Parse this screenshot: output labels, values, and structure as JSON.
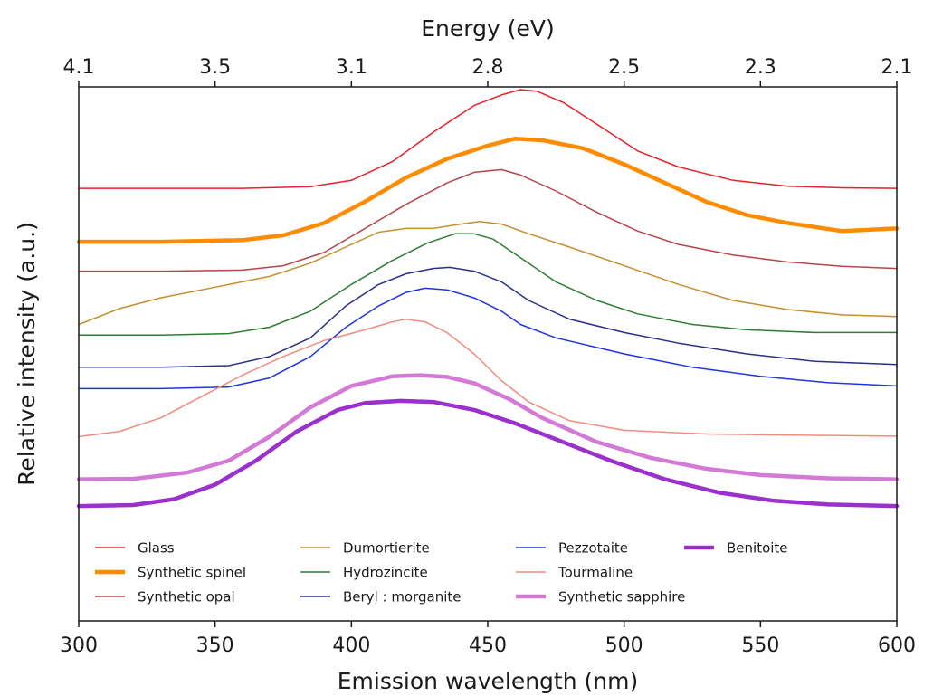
{
  "chart_data": {
    "type": "line",
    "xlabel": "Emission wavelength (nm)",
    "ylabel": "Relative intensity (a.u.)",
    "top_xlabel": "Energy (eV)",
    "xlim": [
      300,
      600
    ],
    "ylim": [
      0,
      100
    ],
    "x_ticks": [
      300,
      350,
      400,
      450,
      500,
      550,
      600
    ],
    "x_tick_labels": [
      "300",
      "350",
      "400",
      "450",
      "500",
      "550",
      "600"
    ],
    "top_ticks": [
      {
        "label": "4.1",
        "wavelength": 300
      },
      {
        "label": "3.5",
        "wavelength": 350
      },
      {
        "label": "3.1",
        "wavelength": 400
      },
      {
        "label": "2.8",
        "wavelength": 450
      },
      {
        "label": "2.5",
        "wavelength": 500
      },
      {
        "label": "2.3",
        "wavelength": 550
      },
      {
        "label": "2.1",
        "wavelength": 600
      }
    ],
    "y_ticks_visible": false,
    "grid": false,
    "legend_position": "bottom",
    "legend_columns": 4,
    "series": [
      {
        "name": "Glass",
        "color": "#e8202a",
        "width": 1.5,
        "points": [
          [
            300,
            81
          ],
          [
            330,
            81
          ],
          [
            360,
            81
          ],
          [
            385,
            81.3
          ],
          [
            400,
            82.5
          ],
          [
            415,
            86
          ],
          [
            430,
            91.5
          ],
          [
            445,
            96.5
          ],
          [
            455,
            98.5
          ],
          [
            462,
            99.5
          ],
          [
            468,
            99.2
          ],
          [
            478,
            97
          ],
          [
            490,
            93
          ],
          [
            505,
            88
          ],
          [
            520,
            85
          ],
          [
            540,
            82.5
          ],
          [
            560,
            81.4
          ],
          [
            580,
            81.1
          ],
          [
            600,
            81
          ]
        ]
      },
      {
        "name": "Synthetic spinel",
        "color": "#ff8c00",
        "width": 4.5,
        "points": [
          [
            300,
            71
          ],
          [
            330,
            71
          ],
          [
            360,
            71.3
          ],
          [
            375,
            72.2
          ],
          [
            390,
            74.5
          ],
          [
            405,
            78.5
          ],
          [
            420,
            83
          ],
          [
            435,
            86.5
          ],
          [
            450,
            89
          ],
          [
            460,
            90.3
          ],
          [
            470,
            90
          ],
          [
            485,
            88.5
          ],
          [
            500,
            85.5
          ],
          [
            515,
            82
          ],
          [
            530,
            78.5
          ],
          [
            545,
            76
          ],
          [
            560,
            74.5
          ],
          [
            580,
            73
          ],
          [
            600,
            73.5
          ]
        ]
      },
      {
        "name": "Synthetic opal",
        "color": "#b5454a",
        "width": 1.5,
        "points": [
          [
            300,
            65.5
          ],
          [
            330,
            65.5
          ],
          [
            360,
            65.7
          ],
          [
            375,
            66.5
          ],
          [
            390,
            69
          ],
          [
            405,
            73.5
          ],
          [
            420,
            78
          ],
          [
            435,
            82
          ],
          [
            445,
            84
          ],
          [
            455,
            84.5
          ],
          [
            462,
            83.5
          ],
          [
            475,
            80.5
          ],
          [
            490,
            76.5
          ],
          [
            505,
            73
          ],
          [
            520,
            70.5
          ],
          [
            540,
            68.5
          ],
          [
            560,
            67.2
          ],
          [
            580,
            66.4
          ],
          [
            600,
            66
          ]
        ]
      },
      {
        "name": "Dumortierite",
        "color": "#c48f2e",
        "width": 1.5,
        "points": [
          [
            300,
            55.5
          ],
          [
            315,
            58.5
          ],
          [
            330,
            60.5
          ],
          [
            350,
            62.5
          ],
          [
            370,
            64.5
          ],
          [
            385,
            67
          ],
          [
            400,
            70.5
          ],
          [
            410,
            72.8
          ],
          [
            420,
            73.5
          ],
          [
            430,
            73.5
          ],
          [
            440,
            74.3
          ],
          [
            447,
            74.8
          ],
          [
            455,
            74.3
          ],
          [
            465,
            72.5
          ],
          [
            480,
            70
          ],
          [
            500,
            66.5
          ],
          [
            520,
            63
          ],
          [
            540,
            60
          ],
          [
            560,
            58.3
          ],
          [
            580,
            57.3
          ],
          [
            600,
            57
          ]
        ]
      },
      {
        "name": "Hydrozincite",
        "color": "#2e7d32",
        "width": 1.5,
        "points": [
          [
            300,
            53.5
          ],
          [
            330,
            53.5
          ],
          [
            355,
            53.8
          ],
          [
            370,
            55
          ],
          [
            385,
            58
          ],
          [
            400,
            63
          ],
          [
            415,
            67.5
          ],
          [
            428,
            70.8
          ],
          [
            438,
            72.5
          ],
          [
            445,
            72.5
          ],
          [
            452,
            71.5
          ],
          [
            462,
            68
          ],
          [
            475,
            63.5
          ],
          [
            490,
            60
          ],
          [
            505,
            57.5
          ],
          [
            525,
            55.5
          ],
          [
            545,
            54.5
          ],
          [
            570,
            54
          ],
          [
            600,
            54
          ]
        ]
      },
      {
        "name": "Beryl : morganite",
        "color": "#2b2f8a",
        "width": 1.5,
        "points": [
          [
            300,
            47.5
          ],
          [
            330,
            47.5
          ],
          [
            355,
            47.8
          ],
          [
            370,
            49.5
          ],
          [
            385,
            53
          ],
          [
            398,
            59
          ],
          [
            410,
            63
          ],
          [
            420,
            65
          ],
          [
            430,
            66
          ],
          [
            436,
            66.2
          ],
          [
            445,
            65.5
          ],
          [
            455,
            63.5
          ],
          [
            465,
            60
          ],
          [
            480,
            56.5
          ],
          [
            500,
            54
          ],
          [
            520,
            52
          ],
          [
            545,
            50
          ],
          [
            570,
            48.6
          ],
          [
            600,
            48
          ]
        ]
      },
      {
        "name": "Pezzotaite",
        "color": "#1f35e0",
        "width": 1.5,
        "points": [
          [
            300,
            43.5
          ],
          [
            330,
            43.5
          ],
          [
            355,
            43.8
          ],
          [
            370,
            45.5
          ],
          [
            385,
            49.5
          ],
          [
            398,
            55
          ],
          [
            410,
            59
          ],
          [
            420,
            61.5
          ],
          [
            427,
            62.3
          ],
          [
            435,
            62
          ],
          [
            445,
            60.5
          ],
          [
            455,
            58
          ],
          [
            462,
            55.5
          ],
          [
            475,
            53
          ],
          [
            500,
            50
          ],
          [
            525,
            47.5
          ],
          [
            550,
            45.8
          ],
          [
            575,
            44.6
          ],
          [
            600,
            44
          ]
        ]
      },
      {
        "name": "Tourmaline",
        "color": "#f28b80",
        "width": 1.5,
        "points": [
          [
            300,
            34.5
          ],
          [
            315,
            35.5
          ],
          [
            330,
            38
          ],
          [
            345,
            42
          ],
          [
            360,
            46
          ],
          [
            375,
            49.5
          ],
          [
            390,
            52.5
          ],
          [
            405,
            54.5
          ],
          [
            415,
            56
          ],
          [
            420,
            56.5
          ],
          [
            427,
            56
          ],
          [
            435,
            54
          ],
          [
            445,
            50
          ],
          [
            455,
            45
          ],
          [
            465,
            41
          ],
          [
            480,
            37.5
          ],
          [
            500,
            35.7
          ],
          [
            530,
            35
          ],
          [
            560,
            34.8
          ],
          [
            600,
            34.6
          ]
        ]
      },
      {
        "name": "Synthetic sapphire",
        "color": "#d27ad6",
        "width": 4.5,
        "points": [
          [
            300,
            26.5
          ],
          [
            320,
            26.6
          ],
          [
            340,
            27.8
          ],
          [
            355,
            30
          ],
          [
            370,
            34.5
          ],
          [
            385,
            40
          ],
          [
            400,
            44
          ],
          [
            415,
            45.8
          ],
          [
            425,
            46
          ],
          [
            435,
            45.7
          ],
          [
            445,
            44.5
          ],
          [
            458,
            41.5
          ],
          [
            470,
            38
          ],
          [
            490,
            33.5
          ],
          [
            510,
            30.5
          ],
          [
            530,
            28.5
          ],
          [
            550,
            27.3
          ],
          [
            575,
            26.7
          ],
          [
            600,
            26.5
          ]
        ]
      },
      {
        "name": "Benitoite",
        "color": "#9b30cc",
        "width": 4.5,
        "points": [
          [
            300,
            21.5
          ],
          [
            320,
            21.7
          ],
          [
            335,
            22.8
          ],
          [
            350,
            25.5
          ],
          [
            365,
            30
          ],
          [
            380,
            35.5
          ],
          [
            395,
            39.5
          ],
          [
            405,
            40.8
          ],
          [
            418,
            41.2
          ],
          [
            430,
            41
          ],
          [
            445,
            39.5
          ],
          [
            460,
            37
          ],
          [
            475,
            34
          ],
          [
            495,
            30
          ],
          [
            515,
            26.5
          ],
          [
            535,
            24
          ],
          [
            555,
            22.5
          ],
          [
            575,
            21.8
          ],
          [
            600,
            21.5
          ]
        ]
      }
    ]
  }
}
